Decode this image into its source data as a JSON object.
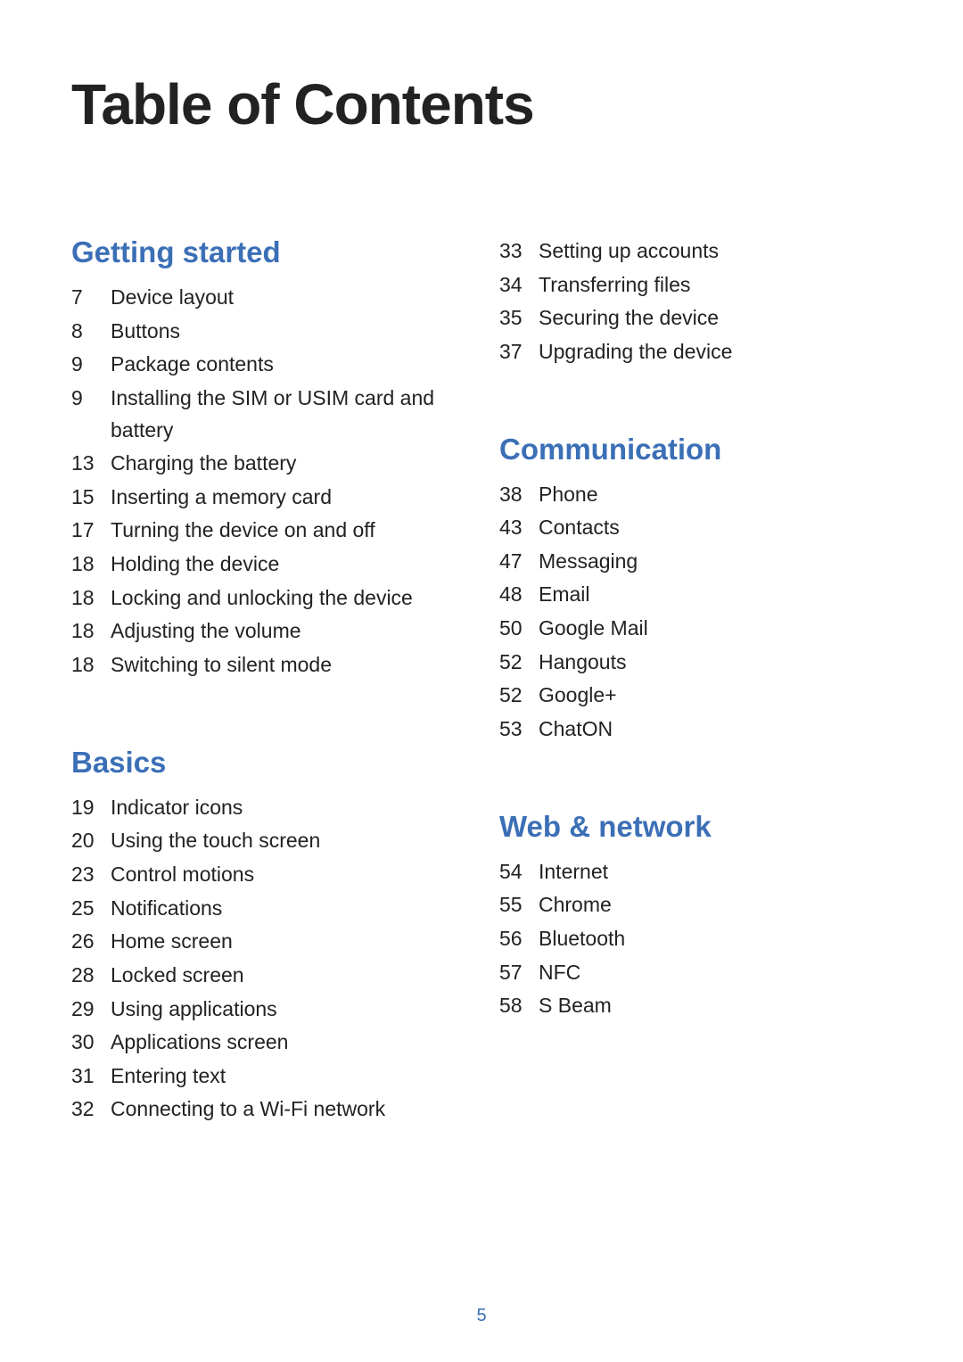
{
  "title": "Table of Contents",
  "page_number": "5",
  "heading_color": "#3b6fb6",
  "text_color": "#222222",
  "columns": {
    "left": [
      {
        "heading": "Getting started",
        "items": [
          {
            "page": "7",
            "label": "Device layout"
          },
          {
            "page": "8",
            "label": "Buttons"
          },
          {
            "page": "9",
            "label": "Package contents"
          },
          {
            "page": "9",
            "label": "Installing the SIM or USIM card and battery"
          },
          {
            "page": "13",
            "label": "Charging the battery"
          },
          {
            "page": "15",
            "label": "Inserting a memory card"
          },
          {
            "page": "17",
            "label": "Turning the device on and off"
          },
          {
            "page": "18",
            "label": "Holding the device"
          },
          {
            "page": "18",
            "label": "Locking and unlocking the device"
          },
          {
            "page": "18",
            "label": "Adjusting the volume"
          },
          {
            "page": "18",
            "label": "Switching to silent mode"
          }
        ]
      },
      {
        "heading": "Basics",
        "items": [
          {
            "page": "19",
            "label": "Indicator icons"
          },
          {
            "page": "20",
            "label": "Using the touch screen"
          },
          {
            "page": "23",
            "label": "Control motions"
          },
          {
            "page": "25",
            "label": "Notifications"
          },
          {
            "page": "26",
            "label": "Home screen"
          },
          {
            "page": "28",
            "label": "Locked screen"
          },
          {
            "page": "29",
            "label": "Using applications"
          },
          {
            "page": "30",
            "label": "Applications screen"
          },
          {
            "page": "31",
            "label": "Entering text"
          },
          {
            "page": "32",
            "label": "Connecting to a Wi-Fi network"
          }
        ]
      }
    ],
    "right": [
      {
        "heading": "",
        "items": [
          {
            "page": "33",
            "label": "Setting up accounts"
          },
          {
            "page": "34",
            "label": "Transferring files"
          },
          {
            "page": "35",
            "label": "Securing the device"
          },
          {
            "page": "37",
            "label": "Upgrading the device"
          }
        ]
      },
      {
        "heading": "Communication",
        "items": [
          {
            "page": "38",
            "label": "Phone"
          },
          {
            "page": "43",
            "label": "Contacts"
          },
          {
            "page": "47",
            "label": "Messaging"
          },
          {
            "page": "48",
            "label": "Email"
          },
          {
            "page": "50",
            "label": "Google Mail"
          },
          {
            "page": "52",
            "label": "Hangouts"
          },
          {
            "page": "52",
            "label": "Google+"
          },
          {
            "page": "53",
            "label": "ChatON"
          }
        ]
      },
      {
        "heading": "Web & network",
        "items": [
          {
            "page": "54",
            "label": "Internet"
          },
          {
            "page": "55",
            "label": "Chrome"
          },
          {
            "page": "56",
            "label": "Bluetooth"
          },
          {
            "page": "57",
            "label": "NFC"
          },
          {
            "page": "58",
            "label": "S Beam"
          }
        ]
      }
    ]
  }
}
